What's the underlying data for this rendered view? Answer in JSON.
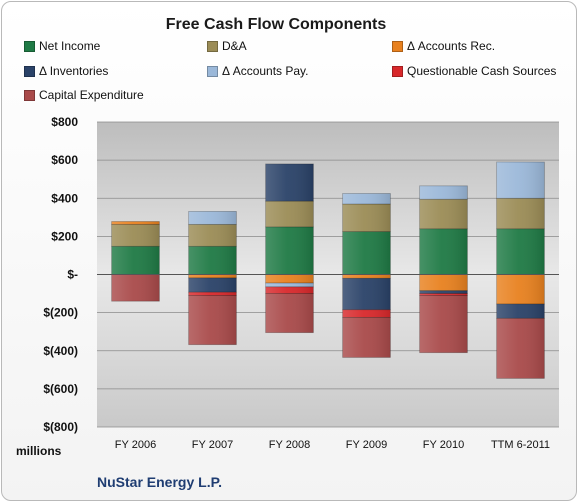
{
  "chart_data": {
    "type": "bar",
    "stacked": true,
    "title": "Free Cash Flow Components",
    "categories": [
      "FY 2006",
      "FY 2007",
      "FY 2008",
      "FY 2009",
      "FY 2010",
      "TTM 6-2011"
    ],
    "ylim": [
      -800,
      800
    ],
    "y_ticks": [
      800,
      600,
      400,
      200,
      0,
      -200,
      -400,
      -600,
      -800
    ],
    "y_tick_labels": [
      "$800",
      "$600",
      "$400",
      "$200",
      "$-",
      "$(200)",
      "$(400)",
      "$(600)",
      "$(800)"
    ],
    "y_unit_label": "millions",
    "legend_position": "top",
    "grid": true,
    "series": [
      {
        "name": "Net Income",
        "color": "#1f7a45",
        "values": [
          148,
          148,
          250,
          225,
          240,
          240
        ]
      },
      {
        "name": "D&A",
        "color": "#9b8c56",
        "values": [
          115,
          115,
          135,
          145,
          155,
          160
        ]
      },
      {
        "name": "Δ Accounts Rec.",
        "color": "#e8811f",
        "values": [
          15,
          -18,
          -45,
          -20,
          -85,
          -155
        ]
      },
      {
        "name": "Δ Inventories",
        "color": "#2a4268",
        "values": [
          0,
          -75,
          195,
          -165,
          -15,
          -75
        ]
      },
      {
        "name": "Δ Accounts Pay.",
        "color": "#9bb8d9",
        "values": [
          0,
          68,
          -20,
          55,
          70,
          190
        ]
      },
      {
        "name": "Questionable Cash Sources",
        "color": "#d8282b",
        "values": [
          0,
          -17,
          -35,
          -40,
          -10,
          0
        ]
      },
      {
        "name": "Capital Expenditure",
        "color": "#a94a4a",
        "values": [
          -140,
          -258,
          -205,
          -210,
          -300,
          -315
        ]
      }
    ]
  },
  "footer": {
    "company": "NuStar Energy L.P."
  }
}
